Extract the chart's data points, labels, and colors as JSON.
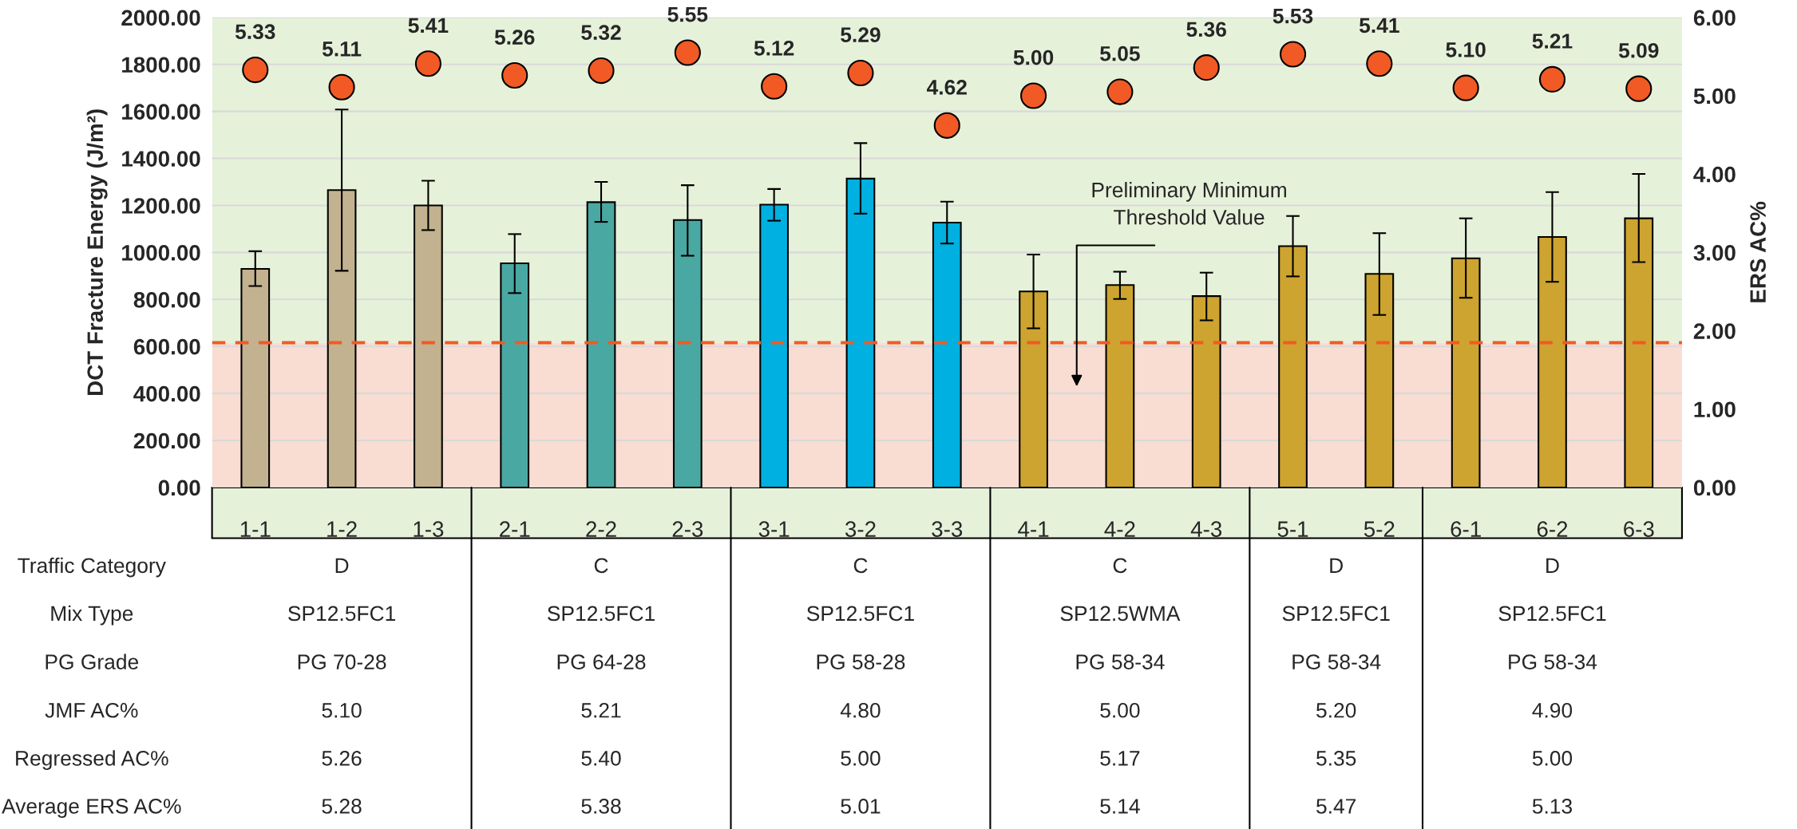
{
  "chart_data": {
    "type": "bar",
    "ylabel": "DCT Fracture Energy (J/m²)",
    "y2label": "ERS AC%",
    "categories": [
      "1-1",
      "1-2",
      "1-3",
      "2-1",
      "2-2",
      "2-3",
      "3-1",
      "3-2",
      "3-3",
      "4-1",
      "4-2",
      "4-3",
      "5-1",
      "5-2",
      "6-1",
      "6-2",
      "6-3"
    ],
    "series": [
      {
        "type": "bar",
        "values": [
          930,
          1265,
          1200,
          954,
          1214,
          1138,
          1203,
          1314,
          1127,
          834,
          861,
          814,
          1027,
          909,
          975,
          1066,
          1145
        ],
        "colors": [
          "#c2b28f",
          "#c2b28f",
          "#c2b28f",
          "#4aa8a3",
          "#4aa8a3",
          "#4aa8a3",
          "#00b0e0",
          "#00b0e0",
          "#00b0e0",
          "#cda42f",
          "#cda42f",
          "#cda42f",
          "#cda42f",
          "#cda42f",
          "#cda42f",
          "#cda42f",
          "#cda42f"
        ],
        "errors": [
          [
            857,
            1005
          ],
          [
            922,
            1608
          ],
          [
            1095,
            1305
          ],
          [
            827,
            1078
          ],
          [
            1130,
            1300
          ],
          [
            986,
            1286
          ],
          [
            1135,
            1270
          ],
          [
            1165,
            1465
          ],
          [
            1038,
            1216
          ],
          [
            677,
            991
          ],
          [
            802,
            918
          ],
          [
            711,
            914
          ],
          [
            898,
            1155
          ],
          [
            734,
            1082
          ],
          [
            807,
            1145
          ],
          [
            875,
            1257
          ],
          [
            959,
            1334
          ]
        ]
      },
      {
        "type": "scatter",
        "axis": "y2",
        "color": "#f15a24",
        "marker": "circle",
        "data_labels": true,
        "values": [
          5.33,
          5.11,
          5.41,
          5.26,
          5.32,
          5.55,
          5.12,
          5.29,
          4.62,
          5.0,
          5.05,
          5.36,
          5.53,
          5.41,
          5.1,
          5.21,
          5.09
        ],
        "value_labels": [
          "5.33",
          "5.11",
          "5.41",
          "5.26",
          "5.32",
          "5.55",
          "5.12",
          "5.29",
          "4.62",
          "5.00",
          "5.05",
          "5.36",
          "5.53",
          "5.41",
          "5.10",
          "5.21",
          "5.09"
        ]
      }
    ],
    "ylim": [
      0,
      2000
    ],
    "yticks": [
      {
        "value": 0,
        "label": "0.00"
      },
      {
        "value": 200,
        "label": "200.00"
      },
      {
        "value": 400,
        "label": "400.00"
      },
      {
        "value": 600,
        "label": "600.00"
      },
      {
        "value": 800,
        "label": "800.00"
      },
      {
        "value": 1000,
        "label": "1000.00"
      },
      {
        "value": 1200,
        "label": "1200.00"
      },
      {
        "value": 1400,
        "label": "1400.00"
      },
      {
        "value": 1600,
        "label": "1600.00"
      },
      {
        "value": 1800,
        "label": "1800.00"
      },
      {
        "value": 2000,
        "label": "2000.00"
      }
    ],
    "y2lim": [
      0,
      6
    ],
    "y2ticks": [
      {
        "value": 0,
        "label": "0.00"
      },
      {
        "value": 1,
        "label": "1.00"
      },
      {
        "value": 2,
        "label": "2.00"
      },
      {
        "value": 3,
        "label": "3.00"
      },
      {
        "value": 4,
        "label": "4.00"
      },
      {
        "value": 5,
        "label": "5.00"
      },
      {
        "value": 6,
        "label": "6.00"
      }
    ],
    "grid": "y",
    "ref_lines": [
      {
        "axis": "y",
        "value": 616,
        "color": "#f15a24",
        "line_style": "dashed"
      }
    ],
    "bands": [
      {
        "axis": "y",
        "from": 0,
        "to": 616,
        "color": "#f9dcd2"
      },
      {
        "axis": "y",
        "from": 616,
        "to": 2000,
        "color": "#e6f1da"
      }
    ],
    "annotations": [
      "Preliminary Minimum\nThreshold Value",
      "Traffic Category",
      "D",
      "C",
      "C",
      "C",
      "D",
      "D",
      "Mix Type",
      "SP12.5FC1",
      "SP12.5FC1",
      "SP12.5FC1",
      "SP12.5WMA",
      "SP12.5FC1",
      "SP12.5FC1",
      "PG Grade",
      "PG 70-28",
      "PG 64-28",
      "PG 58-28",
      "PG 58-34",
      "PG 58-34",
      "PG 58-34",
      "JMF AC%",
      "5.10",
      "5.21",
      "4.80",
      "5.00",
      "5.20",
      "4.90",
      "Regressed AC%",
      "5.26",
      "5.40",
      "5.00",
      "5.17",
      "5.35",
      "5.00",
      "Average ERS AC%",
      "5.28",
      "5.38",
      "5.01",
      "5.14",
      "5.47",
      "5.13"
    ]
  }
}
